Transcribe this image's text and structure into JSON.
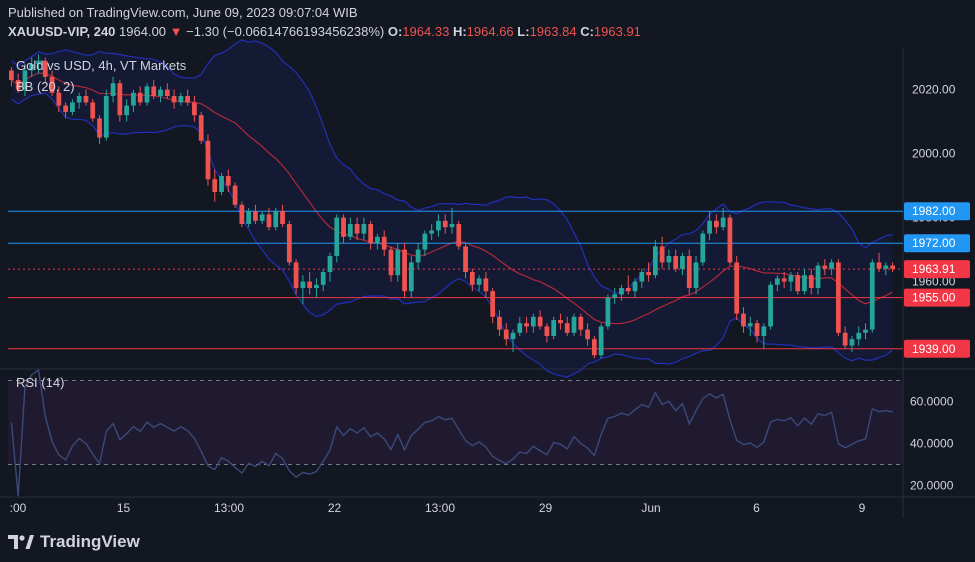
{
  "header": {
    "published": "Published on TradingView.com, June 09, 2023 09:07:04 WIB",
    "symbol": "XAUUSD-VIP, 240",
    "price": "1964.00",
    "change_arrow": "▼",
    "change": "−1.30 (−0.06614766193456238%)",
    "o_label": "O:",
    "o_value": "1964.33",
    "h_label": "H:",
    "h_value": "1964.66",
    "l_label": "L:",
    "l_value": "1963.84",
    "c_label": "C:",
    "c_value": "1963.91"
  },
  "legend": {
    "title": "Gold vs USD, 4h, VT Markets",
    "bb": "BB (20, 2)",
    "rsi": "RSI (14)"
  },
  "footer": {
    "brand": "TradingView"
  },
  "colors": {
    "background": "#131722",
    "up": "#26a69a",
    "down": "#ef5350",
    "bb_band": "#2130b8",
    "bb_basis": "#b2283a",
    "blue_level": "#2196f3",
    "red_level": "#f23645",
    "rsi_line": "#3a4a7a",
    "rsi_fill": "#2a1e3a"
  },
  "chart_data": [
    {
      "type": "candlestick",
      "title": "Gold vs USD, 4h, VT Markets",
      "y_axis": {
        "ticks": [
          2020,
          2000,
          1980,
          1960
        ],
        "tick_labels": [
          "2020.00",
          "2000.00",
          "1980.00",
          "1960.00"
        ],
        "range": [
          1933,
          2033
        ]
      },
      "x_axis": {
        "tick_labels": [
          ":00",
          "15",
          "13:00",
          "22",
          "13:00",
          "29",
          "Jun",
          "6",
          "9"
        ]
      },
      "horizontal_levels": [
        {
          "value": 1982.0,
          "label": "1982.00",
          "color": "blue"
        },
        {
          "value": 1972.0,
          "label": "1972.00",
          "color": "blue"
        },
        {
          "value": 1963.91,
          "label": "1963.91",
          "color": "red",
          "style": "dotted",
          "current": true
        },
        {
          "value": 1955.0,
          "label": "1955.00",
          "color": "red"
        },
        {
          "value": 1939.0,
          "label": "1939.00",
          "color": "red"
        }
      ],
      "ohlc": [
        [
          2026,
          2027,
          2021,
          2023
        ],
        [
          2023,
          2025,
          2019,
          2020
        ],
        [
          2020,
          2028,
          2018,
          2026
        ],
        [
          2026,
          2030,
          2024,
          2028
        ],
        [
          2028,
          2031,
          2025,
          2029
        ],
        [
          2029,
          2030,
          2022,
          2024
        ],
        [
          2024,
          2026,
          2018,
          2019
        ],
        [
          2019,
          2021,
          2013,
          2015
        ],
        [
          2015,
          2016,
          2011,
          2013
        ],
        [
          2013,
          2017,
          2012,
          2016
        ],
        [
          2016,
          2019,
          2014,
          2018
        ],
        [
          2018,
          2020,
          2015,
          2016
        ],
        [
          2016,
          2017,
          2010,
          2011
        ],
        [
          2011,
          2012,
          2003,
          2005
        ],
        [
          2005,
          2020,
          2004,
          2018
        ],
        [
          2018,
          2024,
          2016,
          2022
        ],
        [
          2022,
          2023,
          2010,
          2012
        ],
        [
          2012,
          2017,
          2010,
          2015
        ],
        [
          2015,
          2020,
          2013,
          2019
        ],
        [
          2019,
          2021,
          2015,
          2016
        ],
        [
          2016,
          2022,
          2015,
          2021
        ],
        [
          2021,
          2023,
          2017,
          2018
        ],
        [
          2018,
          2021,
          2016,
          2020
        ],
        [
          2020,
          2022,
          2017,
          2018
        ],
        [
          2018,
          2020,
          2014,
          2016
        ],
        [
          2016,
          2019,
          2015,
          2018
        ],
        [
          2018,
          2020,
          2015,
          2016
        ],
        [
          2016,
          2018,
          2010,
          2012
        ],
        [
          2012,
          2013,
          2003,
          2004
        ],
        [
          2004,
          2006,
          1990,
          1992
        ],
        [
          1992,
          1995,
          1985,
          1988
        ],
        [
          1988,
          1994,
          1987,
          1993
        ],
        [
          1993,
          1995,
          1988,
          1990
        ],
        [
          1990,
          1991,
          1983,
          1984
        ],
        [
          1984,
          1985,
          1977,
          1978
        ],
        [
          1978,
          1983,
          1977,
          1982
        ],
        [
          1982,
          1984,
          1978,
          1979
        ],
        [
          1979,
          1982,
          1978,
          1981
        ],
        [
          1981,
          1983,
          1976,
          1977
        ],
        [
          1977,
          1983,
          1976,
          1982
        ],
        [
          1982,
          1984,
          1977,
          1978
        ],
        [
          1978,
          1979,
          1965,
          1966
        ],
        [
          1966,
          1967,
          1956,
          1958
        ],
        [
          1958,
          1962,
          1953,
          1960
        ],
        [
          1960,
          1963,
          1956,
          1958
        ],
        [
          1958,
          1961,
          1955,
          1959
        ],
        [
          1959,
          1964,
          1957,
          1963
        ],
        [
          1963,
          1969,
          1960,
          1968
        ],
        [
          1968,
          1981,
          1966,
          1980
        ],
        [
          1980,
          1981,
          1972,
          1974
        ],
        [
          1974,
          1980,
          1973,
          1978
        ],
        [
          1978,
          1980,
          1973,
          1975
        ],
        [
          1975,
          1980,
          1973,
          1978
        ],
        [
          1978,
          1979,
          1970,
          1972
        ],
        [
          1972,
          1975,
          1970,
          1974
        ],
        [
          1974,
          1976,
          1968,
          1970
        ],
        [
          1970,
          1971,
          1960,
          1962
        ],
        [
          1962,
          1972,
          1960,
          1970
        ],
        [
          1970,
          1972,
          1955,
          1957
        ],
        [
          1957,
          1968,
          1955,
          1966
        ],
        [
          1966,
          1972,
          1964,
          1970
        ],
        [
          1970,
          1976,
          1968,
          1975
        ],
        [
          1975,
          1978,
          1973,
          1976
        ],
        [
          1976,
          1981,
          1974,
          1979
        ],
        [
          1979,
          1981,
          1975,
          1977
        ],
        [
          1977,
          1983,
          1975,
          1978
        ],
        [
          1978,
          1979,
          1970,
          1971
        ],
        [
          1971,
          1972,
          1961,
          1963
        ],
        [
          1963,
          1964,
          1957,
          1959
        ],
        [
          1959,
          1962,
          1957,
          1961
        ],
        [
          1961,
          1963,
          1955,
          1957
        ],
        [
          1957,
          1958,
          1947,
          1949
        ],
        [
          1949,
          1951,
          1943,
          1945
        ],
        [
          1945,
          1947,
          1940,
          1942
        ],
        [
          1942,
          1945,
          1938,
          1944
        ],
        [
          1944,
          1949,
          1943,
          1947
        ],
        [
          1947,
          1949,
          1944,
          1946
        ],
        [
          1946,
          1950,
          1944,
          1949
        ],
        [
          1949,
          1951,
          1945,
          1946
        ],
        [
          1946,
          1947,
          1941,
          1943
        ],
        [
          1943,
          1949,
          1942,
          1948
        ],
        [
          1948,
          1950,
          1945,
          1947
        ],
        [
          1947,
          1949,
          1943,
          1944
        ],
        [
          1944,
          1950,
          1943,
          1949
        ],
        [
          1949,
          1950,
          1943,
          1945
        ],
        [
          1945,
          1947,
          1940,
          1942
        ],
        [
          1942,
          1943,
          1936,
          1937
        ],
        [
          1937,
          1947,
          1936,
          1946
        ],
        [
          1946,
          1956,
          1945,
          1955
        ],
        [
          1955,
          1958,
          1953,
          1956
        ],
        [
          1956,
          1959,
          1954,
          1958
        ],
        [
          1958,
          1962,
          1956,
          1957
        ],
        [
          1957,
          1961,
          1955,
          1960
        ],
        [
          1960,
          1964,
          1958,
          1963
        ],
        [
          1963,
          1966,
          1960,
          1962
        ],
        [
          1962,
          1973,
          1961,
          1971
        ],
        [
          1971,
          1974,
          1964,
          1966
        ],
        [
          1966,
          1970,
          1964,
          1968
        ],
        [
          1968,
          1970,
          1963,
          1964
        ],
        [
          1964,
          1969,
          1962,
          1968
        ],
        [
          1968,
          1970,
          1956,
          1958
        ],
        [
          1958,
          1968,
          1956,
          1966
        ],
        [
          1966,
          1976,
          1965,
          1975
        ],
        [
          1975,
          1982,
          1973,
          1979
        ],
        [
          1979,
          1981,
          1975,
          1977
        ],
        [
          1977,
          1983,
          1976,
          1980
        ],
        [
          1980,
          1981,
          1965,
          1966
        ],
        [
          1966,
          1968,
          1948,
          1950
        ],
        [
          1950,
          1952,
          1944,
          1946
        ],
        [
          1946,
          1949,
          1943,
          1947
        ],
        [
          1947,
          1948,
          1941,
          1943
        ],
        [
          1943,
          1947,
          1939,
          1946
        ],
        [
          1946,
          1960,
          1945,
          1959
        ],
        [
          1959,
          1962,
          1957,
          1961
        ],
        [
          1961,
          1963,
          1958,
          1960
        ],
        [
          1960,
          1963,
          1957,
          1962
        ],
        [
          1962,
          1963,
          1956,
          1957
        ],
        [
          1957,
          1964,
          1956,
          1962
        ],
        [
          1962,
          1964,
          1956,
          1958
        ],
        [
          1958,
          1966,
          1956,
          1965
        ],
        [
          1965,
          1967,
          1962,
          1964
        ],
        [
          1964,
          1967,
          1962,
          1966
        ],
        [
          1966,
          1967,
          1943,
          1944
        ],
        [
          1944,
          1946,
          1939,
          1940
        ],
        [
          1940,
          1943,
          1938,
          1942
        ],
        [
          1942,
          1946,
          1940,
          1944
        ],
        [
          1944,
          1947,
          1942,
          1945
        ],
        [
          1945,
          1967,
          1944,
          1966
        ],
        [
          1966,
          1969,
          1963,
          1964
        ],
        [
          1964,
          1966,
          1962,
          1965
        ],
        [
          1965,
          1966,
          1963,
          1964
        ]
      ],
      "bollinger_bands": {
        "period": 20,
        "stddev": 2
      }
    },
    {
      "type": "line",
      "title": "RSI (14)",
      "y_axis": {
        "ticks": [
          60,
          40,
          20
        ],
        "tick_labels": [
          "60.0000",
          "40.0000",
          "20.0000"
        ],
        "range": [
          15,
          75
        ],
        "band": [
          30,
          70
        ]
      }
    }
  ]
}
